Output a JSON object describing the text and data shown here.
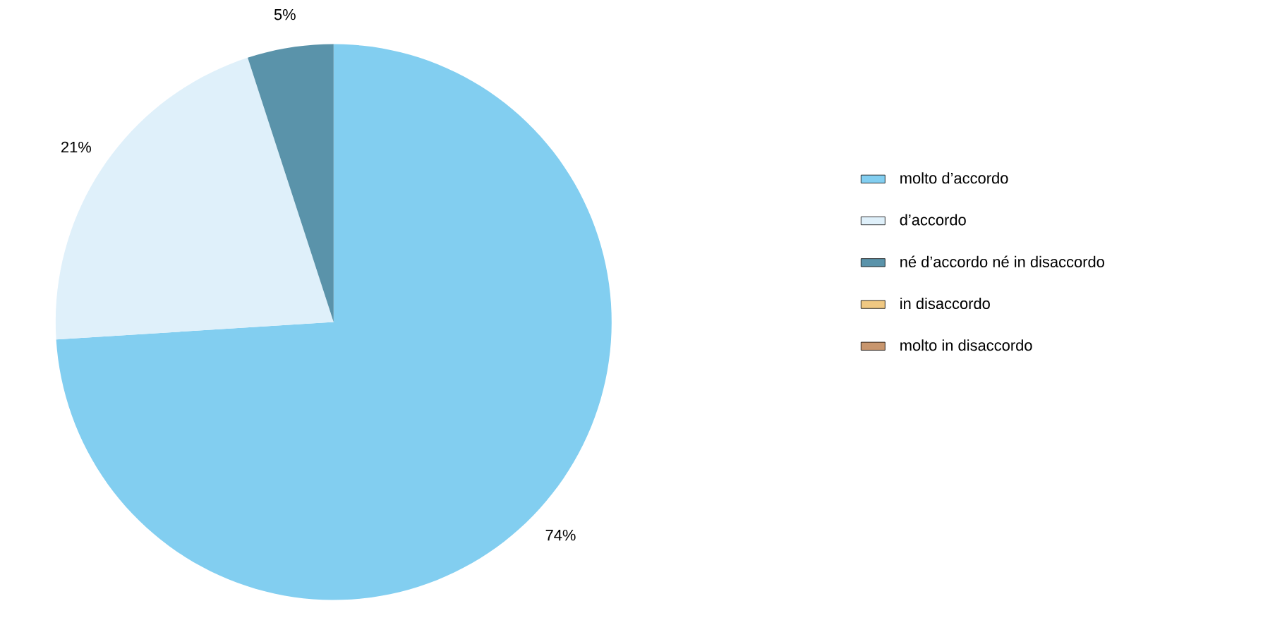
{
  "chart_data": {
    "type": "pie",
    "categories": [
      "molto d’accordo",
      "d’accordo",
      "né d’accordo né in disaccordo",
      "in disaccordo",
      "molto in disaccordo"
    ],
    "values": [
      74,
      21,
      5,
      0,
      0
    ],
    "colors": [
      "#82cef0",
      "#dff0fa",
      "#5a93aa",
      "#f0c882",
      "#c8966e"
    ],
    "value_labels": [
      "74%",
      "21%",
      "5%",
      null,
      null
    ],
    "legend": "right"
  }
}
